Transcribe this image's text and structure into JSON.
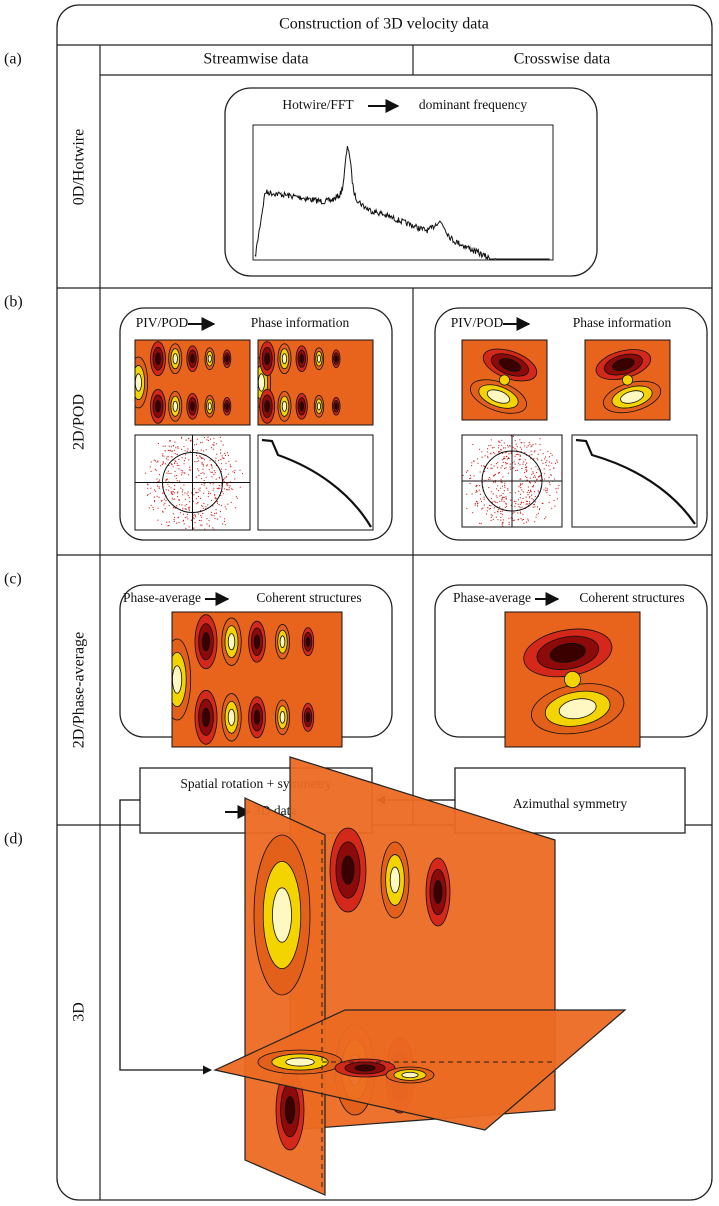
{
  "title": "Construction of 3D velocity data",
  "columns": [
    "Streamwise data",
    "Crosswise data"
  ],
  "panels": [
    {
      "letter": "(a)",
      "row_label": "0D/Hotwire"
    },
    {
      "letter": "(b)",
      "row_label": "2D/POD"
    },
    {
      "letter": "(c)",
      "row_label": "2D/Phase-average"
    },
    {
      "letter": "(d)",
      "row_label": "3D"
    }
  ],
  "hotwire": {
    "method": "Hotwire/FFT",
    "result": "dominant frequency"
  },
  "pod": [
    {
      "method": "PIV/POD",
      "result": "Phase information"
    },
    {
      "method": "PIV/POD",
      "result": "Phase information"
    }
  ],
  "phase_average": [
    {
      "method": "Phase-average",
      "result": "Coherent structures"
    },
    {
      "method": "Phase-average",
      "result": "Coherent structures"
    }
  ],
  "boxes": {
    "rotation": [
      "Spatial rotation + symmetry",
      "3D data"
    ],
    "azimuthal": "Azimuthal symmetry"
  }
}
